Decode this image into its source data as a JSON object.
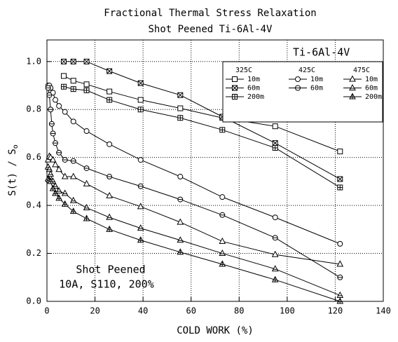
{
  "chart_data": {
    "type": "line",
    "title": "Fractional Thermal Stress Relaxation",
    "subtitle": "Shot Peened  Ti-6Al-4V",
    "x_label": "COLD WORK (%)",
    "y_label": "S(t) / S",
    "y_label_sub": "o",
    "material_label": "Ti-6Al-4V",
    "annotation": [
      "Shot Peened",
      "10A, S110, 200%"
    ],
    "xlim": [
      0,
      140
    ],
    "xticks": [
      0,
      20,
      40,
      60,
      80,
      100,
      120,
      140
    ],
    "ylim": [
      0,
      1.09
    ],
    "yticks": [
      {
        "value": 0,
        "label": "0.0"
      },
      0.2,
      0.4,
      0.6,
      0.8,
      {
        "value": 1,
        "label": "1.0"
      }
    ],
    "grid": true,
    "legend": "upper right",
    "series_groups": [
      {
        "name": "325C",
        "series": [
          {
            "name": "10m",
            "color": "#000",
            "marker": "square",
            "x": [
              7,
              11,
              16.5,
              26,
              39,
              55.5,
              73,
              95,
              122
            ],
            "values": [
              0.94,
              0.92,
              0.905,
              0.875,
              0.84,
              0.805,
              0.765,
              0.73,
              0.625
            ]
          },
          {
            "name": "60m",
            "color": "#000",
            "marker": "square-x",
            "x": [
              7,
              11,
              16.5,
              26,
              39,
              55.5,
              73,
              95,
              122
            ],
            "values": [
              1.0,
              1.0,
              1.0,
              0.96,
              0.91,
              0.86,
              0.77,
              0.66,
              0.51
            ]
          },
          {
            "name": "200m",
            "color": "#000",
            "marker": "square-plus",
            "x": [
              7,
              11,
              16.5,
              26,
              39,
              55.5,
              73,
              95,
              122
            ],
            "values": [
              0.895,
              0.885,
              0.88,
              0.84,
              0.8,
              0.765,
              0.715,
              0.64,
              0.475
            ]
          }
        ]
      },
      {
        "name": "425C",
        "series": [
          {
            "name": "10m",
            "color": "#000",
            "marker": "circle",
            "x": [
              0.5,
              1,
              1.5,
              2.5,
              3.5,
              5,
              7.5,
              11,
              16.5,
              26,
              39,
              55.5,
              73,
              95,
              122
            ],
            "values": [
              0.9,
              0.9,
              0.89,
              0.87,
              0.84,
              0.815,
              0.79,
              0.75,
              0.71,
              0.655,
              0.59,
              0.52,
              0.435,
              0.35,
              0.24
            ]
          },
          {
            "name": "60m",
            "color": "#000",
            "marker": "circle-bar",
            "x": [
              0.5,
              1,
              1.5,
              2,
              2.5,
              3.5,
              5,
              7.5,
              11,
              16.5,
              26,
              39,
              55.5,
              73,
              95,
              122
            ],
            "values": [
              0.89,
              0.86,
              0.8,
              0.74,
              0.7,
              0.66,
              0.62,
              0.59,
              0.585,
              0.555,
              0.52,
              0.48,
              0.425,
              0.36,
              0.265,
              0.1
            ]
          }
        ]
      },
      {
        "name": "475C",
        "series": [
          {
            "name": "10m",
            "color": "#000",
            "marker": "triangle",
            "x": [
              0.5,
              1,
              1.5,
              2.5,
              3.5,
              5,
              7.5,
              11,
              16.5,
              26,
              39,
              55.5,
              73,
              95,
              122
            ],
            "values": [
              0.59,
              0.605,
              0.6,
              0.59,
              0.57,
              0.55,
              0.52,
              0.52,
              0.49,
              0.44,
              0.395,
              0.33,
              0.25,
              0.195,
              0.155
            ]
          },
          {
            "name": "60m",
            "color": "#000",
            "marker": "triangle-bar",
            "x": [
              0.5,
              1,
              1.5,
              2.5,
              3.5,
              5,
              7.5,
              11,
              16.5,
              26,
              39,
              55.5,
              73,
              95,
              122
            ],
            "values": [
              0.56,
              0.55,
              0.53,
              0.5,
              0.48,
              0.46,
              0.45,
              0.42,
              0.39,
              0.35,
              0.305,
              0.255,
              0.2,
              0.135,
              0.025
            ]
          },
          {
            "name": "200m",
            "color": "#000",
            "marker": "triangle-star",
            "x": [
              0.5,
              1,
              1.5,
              2.5,
              3.5,
              5,
              7.5,
              11,
              16.5,
              26,
              39,
              55.5,
              73,
              95,
              122
            ],
            "values": [
              0.51,
              0.505,
              0.5,
              0.47,
              0.45,
              0.43,
              0.405,
              0.375,
              0.345,
              0.3,
              0.255,
              0.205,
              0.155,
              0.09,
              0.0
            ]
          }
        ]
      }
    ]
  }
}
